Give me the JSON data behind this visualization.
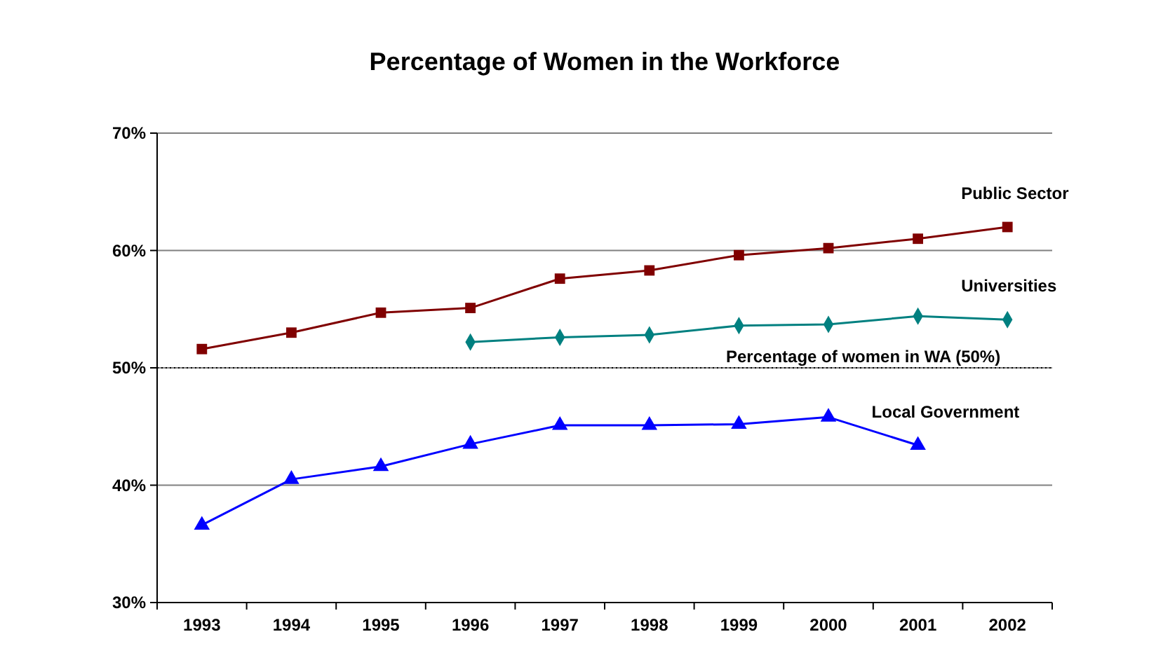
{
  "chart_data": {
    "type": "line",
    "title": "Percentage of Women in the Workforce",
    "categories": [
      "1993",
      "1994",
      "1995",
      "1996",
      "1997",
      "1998",
      "1999",
      "2000",
      "2001",
      "2002"
    ],
    "series": [
      {
        "name": "Public Sector",
        "color": "#800000",
        "marker": "square",
        "values": [
          51.6,
          53.0,
          54.7,
          55.1,
          57.6,
          58.3,
          59.6,
          60.2,
          61.0,
          62.0
        ]
      },
      {
        "name": "Universities",
        "color": "#008080",
        "marker": "diamond",
        "values": [
          null,
          null,
          null,
          52.2,
          52.6,
          52.8,
          53.6,
          53.7,
          54.4,
          54.1
        ]
      },
      {
        "name": "Local Government",
        "color": "#0000ff",
        "marker": "triangle",
        "values": [
          36.6,
          40.5,
          41.6,
          43.5,
          45.1,
          45.1,
          45.2,
          45.8,
          43.4,
          null
        ]
      }
    ],
    "ylim": [
      30,
      70
    ],
    "yticks": [
      {
        "value": 30,
        "label": "30%"
      },
      {
        "value": 40,
        "label": "40%"
      },
      {
        "value": 50,
        "label": "50%"
      },
      {
        "value": 60,
        "label": "60%"
      },
      {
        "value": 70,
        "label": "70%"
      }
    ],
    "grid": "y",
    "line_style": "solid",
    "ref_lines": [
      {
        "axis": "y",
        "value": 50,
        "label": "Percentage of women in WA (50%)",
        "color": "#000000",
        "line_style": "dotted"
      }
    ]
  }
}
